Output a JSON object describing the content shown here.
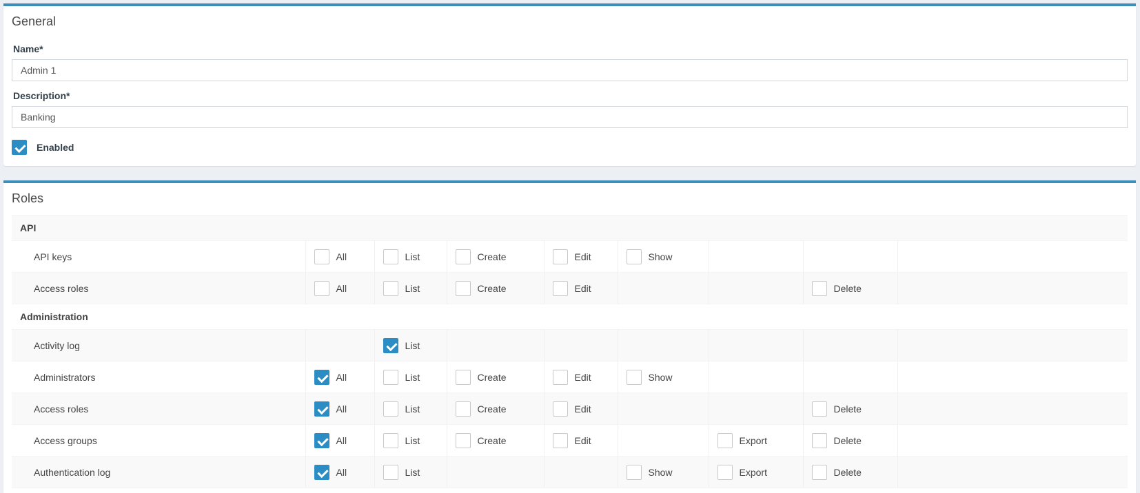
{
  "colors": {
    "accent": "#3c8dbc",
    "checkbox_checked": "#2b8dc3",
    "page_background": "#ecf0f5"
  },
  "general": {
    "title": "General",
    "name_field": {
      "label": "Name*",
      "value": "Admin 1"
    },
    "description_field": {
      "label": "Description*",
      "value": "Banking"
    },
    "enabled": {
      "label": "Enabled",
      "checked": true
    }
  },
  "roles": {
    "title": "Roles",
    "columns": [
      "All",
      "List",
      "Create",
      "Edit",
      "Show",
      "Export",
      "Delete"
    ],
    "groups": [
      {
        "name": "API",
        "rows": [
          {
            "label": "API keys",
            "permissions": {
              "All": false,
              "List": false,
              "Create": false,
              "Edit": false,
              "Show": false
            }
          },
          {
            "label": "Access roles",
            "permissions": {
              "All": false,
              "List": false,
              "Create": false,
              "Edit": false,
              "Delete": false
            }
          }
        ]
      },
      {
        "name": "Administration",
        "rows": [
          {
            "label": "Activity log",
            "permissions": {
              "List": true
            }
          },
          {
            "label": "Administrators",
            "permissions": {
              "All": true,
              "List": false,
              "Create": false,
              "Edit": false,
              "Show": false
            }
          },
          {
            "label": "Access roles",
            "permissions": {
              "All": true,
              "List": false,
              "Create": false,
              "Edit": false,
              "Delete": false
            }
          },
          {
            "label": "Access groups",
            "permissions": {
              "All": true,
              "List": false,
              "Create": false,
              "Edit": false,
              "Export": false,
              "Delete": false
            }
          },
          {
            "label": "Authentication log",
            "permissions": {
              "All": true,
              "List": false,
              "Show": false,
              "Export": false,
              "Delete": false
            }
          }
        ]
      }
    ]
  }
}
